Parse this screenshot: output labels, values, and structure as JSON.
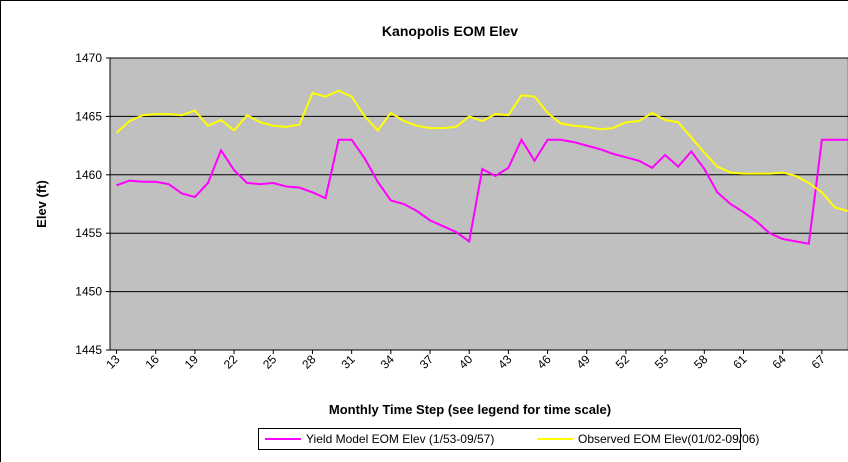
{
  "chart_data": {
    "type": "line",
    "title": "Kanopolis EOM Elev",
    "x_label": "Monthly Time Step (see legend for time scale)",
    "y_label": "Elev (ft)",
    "x": [
      13,
      14,
      15,
      16,
      17,
      18,
      19,
      20,
      21,
      22,
      23,
      24,
      25,
      26,
      27,
      28,
      29,
      30,
      31,
      32,
      33,
      34,
      35,
      36,
      37,
      38,
      39,
      40,
      41,
      42,
      43,
      44,
      45,
      46,
      47,
      48,
      49,
      50,
      51,
      52,
      53,
      54,
      55,
      56,
      57,
      58,
      59,
      60,
      61,
      62,
      63,
      64,
      65,
      66,
      67,
      68,
      69
    ],
    "xlim": [
      12.5,
      69
    ],
    "xticks": [
      13,
      16,
      19,
      22,
      25,
      28,
      31,
      34,
      37,
      40,
      43,
      46,
      49,
      52,
      55,
      58,
      61,
      64,
      67
    ],
    "ylim": [
      1445,
      1470
    ],
    "yticks": [
      1445,
      1450,
      1455,
      1460,
      1465,
      1470
    ],
    "grid": true,
    "series": [
      {
        "name": "Yield Model EOM Elev (1/53-09/57)",
        "color": "#ff00ff",
        "values": [
          1459.1,
          1459.5,
          1459.4,
          1459.4,
          1459.2,
          1458.4,
          1458.1,
          1459.3,
          1462.1,
          1460.4,
          1459.3,
          1459.2,
          1459.3,
          1459.0,
          1458.9,
          1458.5,
          1458.0,
          1463.0,
          1463.0,
          1461.4,
          1459.4,
          1457.8,
          1457.5,
          1456.9,
          1456.1,
          1455.6,
          1455.1,
          1454.3,
          1460.5,
          1459.9,
          1460.6,
          1463.0,
          1461.2,
          1463.0,
          1463.0,
          1462.8,
          1462.5,
          1462.2,
          1461.8,
          1461.5,
          1461.2,
          1460.6,
          1461.7,
          1460.7,
          1462.0,
          1460.5,
          1458.5,
          1457.5,
          1456.8,
          1456.0,
          1455.0,
          1454.5,
          1454.3,
          1454.1,
          1463.0,
          1463.0,
          1463.0
        ]
      },
      {
        "name": "Observed EOM Elev(01/02-09/06)",
        "color": "#ffff00",
        "values": [
          1463.6,
          1464.6,
          1465.1,
          1465.2,
          1465.2,
          1465.1,
          1465.5,
          1464.2,
          1464.7,
          1463.8,
          1465.1,
          1464.5,
          1464.2,
          1464.1,
          1464.3,
          1467.0,
          1466.7,
          1467.2,
          1466.7,
          1465.0,
          1463.8,
          1465.3,
          1464.6,
          1464.2,
          1464.0,
          1464.0,
          1464.1,
          1465.0,
          1464.6,
          1465.2,
          1465.1,
          1466.8,
          1466.7,
          1465.3,
          1464.4,
          1464.2,
          1464.1,
          1463.9,
          1464.0,
          1464.5,
          1464.6,
          1465.3,
          1464.7,
          1464.5,
          1463.2,
          1461.9,
          1460.7,
          1460.2,
          1460.1,
          1460.1,
          1460.1,
          1460.2,
          1459.9,
          1459.3,
          1458.5,
          1457.2,
          1456.9
        ]
      }
    ]
  }
}
